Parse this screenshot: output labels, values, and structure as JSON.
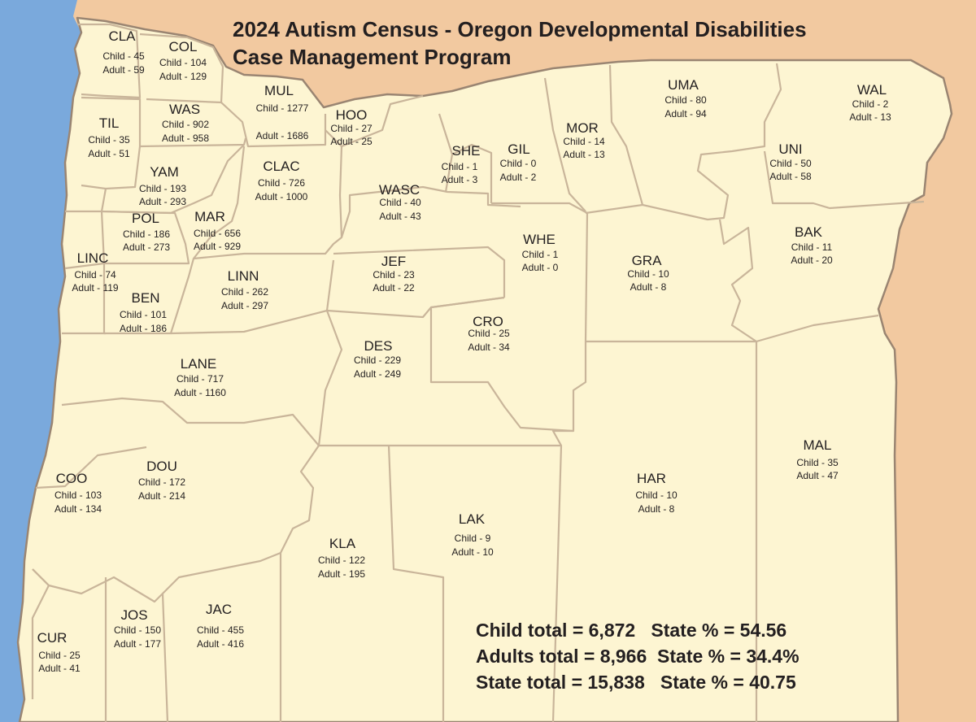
{
  "title": {
    "line1": "2024 Autism Census - Oregon Developmental Disabilities",
    "line2": "Case Management Program"
  },
  "colors": {
    "ocean": "#7aa9dc",
    "neighbor_states": "#f2c9a0",
    "oregon_fill": "#fdf5d2",
    "county_border": "#c9b59a",
    "state_border": "#9a8572",
    "text": "#231f20"
  },
  "counties": [
    {
      "abbr": "CLA",
      "child": "Child - 45",
      "adult": "Adult - 59"
    },
    {
      "abbr": "COL",
      "child": "Child - 104",
      "adult": "Adult - 129"
    },
    {
      "abbr": "MUL",
      "child": "Child - 1277",
      "adult": "Adult - 1686"
    },
    {
      "abbr": "WAS",
      "child": "Child - 902",
      "adult": "Adult - 958"
    },
    {
      "abbr": "TIL",
      "child": "Child - 35",
      "adult": "Adult - 51"
    },
    {
      "abbr": "HOO",
      "child": "Child - 27",
      "adult": "Adult - 25"
    },
    {
      "abbr": "YAM",
      "child": "Child - 193",
      "adult": "Adult - 293"
    },
    {
      "abbr": "CLAC",
      "child": "Child - 726",
      "adult": "Adult - 1000"
    },
    {
      "abbr": "POL",
      "child": "Child - 186",
      "adult": "Adult - 273"
    },
    {
      "abbr": "MAR",
      "child": "Child - 656",
      "adult": "Adult - 929"
    },
    {
      "abbr": "LINC",
      "child": "Child - 74",
      "adult": "Adult - 119"
    },
    {
      "abbr": "BEN",
      "child": "Child - 101",
      "adult": "Adult - 186"
    },
    {
      "abbr": "LINN",
      "child": "Child - 262",
      "adult": "Adult - 297"
    },
    {
      "abbr": "LANE",
      "child": "Child - 717",
      "adult": "Adult - 1160"
    },
    {
      "abbr": "WASC",
      "child": "Child - 40",
      "adult": "Adult - 43"
    },
    {
      "abbr": "SHE",
      "child": "Child - 1",
      "adult": "Adult - 3"
    },
    {
      "abbr": "GIL",
      "child": "Child - 0",
      "adult": "Adult - 2"
    },
    {
      "abbr": "MOR",
      "child": "Child - 14",
      "adult": "Adult - 13"
    },
    {
      "abbr": "UMA",
      "child": "Child - 80",
      "adult": "Adult - 94"
    },
    {
      "abbr": "WAL",
      "child": "Child - 2",
      "adult": "Adult - 13"
    },
    {
      "abbr": "UNI",
      "child": "Child - 50",
      "adult": "Adult - 58"
    },
    {
      "abbr": "BAK",
      "child": "Child - 11",
      "adult": "Adult - 20"
    },
    {
      "abbr": "WHE",
      "child": "Child - 1",
      "adult": "Adult - 0"
    },
    {
      "abbr": "GRA",
      "child": "Child - 10",
      "adult": "Adult - 8"
    },
    {
      "abbr": "JEF",
      "child": "Child - 23",
      "adult": "Adult - 22"
    },
    {
      "abbr": "CRO",
      "child": "Child - 25",
      "adult": "Adult - 34"
    },
    {
      "abbr": "DES",
      "child": "Child - 229",
      "adult": "Adult - 249"
    },
    {
      "abbr": "MAL",
      "child": "Child - 35",
      "adult": "Adult - 47"
    },
    {
      "abbr": "HAR",
      "child": "Child - 10",
      "adult": "Adult - 8"
    },
    {
      "abbr": "LAK",
      "child": "Child - 9",
      "adult": "Adult - 10"
    },
    {
      "abbr": "KLA",
      "child": "Child - 122",
      "adult": "Adult - 195"
    },
    {
      "abbr": "COO",
      "child": "Child - 103",
      "adult": "Adult - 134"
    },
    {
      "abbr": "DOU",
      "child": "Child - 172",
      "adult": "Adult - 214"
    },
    {
      "abbr": "JOS",
      "child": "Child - 150",
      "adult": "Adult - 177"
    },
    {
      "abbr": "JAC",
      "child": "Child - 455",
      "adult": "Adult - 416"
    },
    {
      "abbr": "CUR",
      "child": "Child - 25",
      "adult": "Adult - 41"
    }
  ],
  "totals": {
    "child": "Child total = 6,872   State % = 54.56",
    "adult": "Adults total = 8,966  State % = 34.4%",
    "state": "State total = 15,838   State % = 40.75"
  }
}
